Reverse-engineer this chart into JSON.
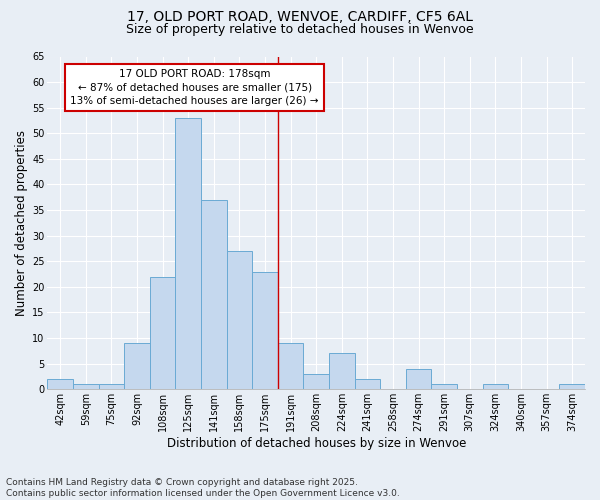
{
  "title": "17, OLD PORT ROAD, WENVOE, CARDIFF, CF5 6AL",
  "subtitle": "Size of property relative to detached houses in Wenvoe",
  "xlabel": "Distribution of detached houses by size in Wenvoe",
  "ylabel": "Number of detached properties",
  "categories": [
    "42sqm",
    "59sqm",
    "75sqm",
    "92sqm",
    "108sqm",
    "125sqm",
    "141sqm",
    "158sqm",
    "175sqm",
    "191sqm",
    "208sqm",
    "224sqm",
    "241sqm",
    "258sqm",
    "274sqm",
    "291sqm",
    "307sqm",
    "324sqm",
    "340sqm",
    "357sqm",
    "374sqm"
  ],
  "values": [
    2,
    1,
    1,
    9,
    22,
    53,
    37,
    27,
    23,
    9,
    3,
    7,
    2,
    0,
    4,
    1,
    0,
    1,
    0,
    0,
    1
  ],
  "bar_color": "#c5d8ee",
  "bar_edge_color": "#6aaad4",
  "bg_color": "#e8eef5",
  "grid_color": "#ffffff",
  "property_line_color": "#cc0000",
  "annotation_text": "17 OLD PORT ROAD: 178sqm\n← 87% of detached houses are smaller (175)\n13% of semi-detached houses are larger (26) →",
  "annotation_box_color": "#cc0000",
  "ylim": [
    0,
    65
  ],
  "yticks": [
    0,
    5,
    10,
    15,
    20,
    25,
    30,
    35,
    40,
    45,
    50,
    55,
    60,
    65
  ],
  "footer": "Contains HM Land Registry data © Crown copyright and database right 2025.\nContains public sector information licensed under the Open Government Licence v3.0.",
  "title_fontsize": 10,
  "subtitle_fontsize": 9,
  "label_fontsize": 8.5,
  "tick_fontsize": 7,
  "footer_fontsize": 6.5,
  "annot_fontsize": 7.5
}
